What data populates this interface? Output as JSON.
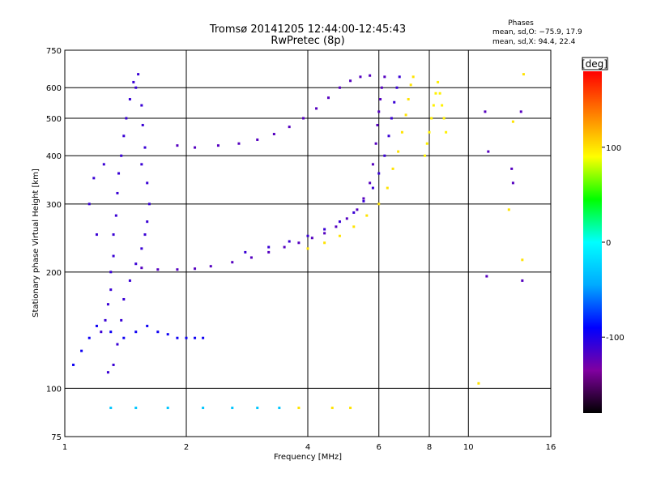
{
  "chart_data": {
    "type": "scatter",
    "title": "Tromsø 20141205 12:44:00-12:45:43",
    "subtitle": "RwPretec (8p)",
    "phase_stats": {
      "heading": "Phases",
      "line1": "mean, sd,O: −75.9, 17.9",
      "line2": "mean, sd,X:  94.4, 22.4"
    },
    "xlabel": "Frequency [MHz]",
    "ylabel": "Stationary phase Virtual Height [km]",
    "x_scale": "log",
    "y_scale": "log",
    "xlim": [
      1,
      16
    ],
    "ylim": [
      75,
      750
    ],
    "x_ticks": [
      1,
      2,
      4,
      6,
      8,
      10,
      16
    ],
    "x_tick_labels": [
      "1",
      "2",
      "4",
      "6",
      "8",
      "10",
      "16"
    ],
    "y_ticks": [
      75,
      100,
      200,
      300,
      400,
      500,
      600,
      750
    ],
    "y_tick_labels": [
      "75",
      "100",
      "200",
      "300",
      "400",
      "500",
      "600",
      "750"
    ],
    "grid": true,
    "colorbar": {
      "label": "[deg]",
      "range": [
        -180,
        180
      ],
      "ticks": [
        100,
        0,
        -100
      ],
      "tick_labels": [
        "100",
        "0",
        "-100"
      ],
      "stops": [
        "#000000",
        "#8000a0",
        "#0000ff",
        "#00aaff",
        "#00ffff",
        "#00ff00",
        "#ffff00",
        "#ff8000",
        "#ff0000"
      ]
    },
    "series": [
      {
        "phase": -110,
        "points": [
          [
            1.23,
            140
          ],
          [
            1.26,
            150
          ],
          [
            1.28,
            165
          ],
          [
            1.3,
            180
          ],
          [
            1.3,
            200
          ],
          [
            1.32,
            220
          ],
          [
            1.32,
            250
          ],
          [
            1.34,
            280
          ],
          [
            1.35,
            320
          ],
          [
            1.36,
            360
          ],
          [
            1.38,
            400
          ],
          [
            1.4,
            450
          ],
          [
            1.42,
            500
          ],
          [
            1.45,
            560
          ],
          [
            1.48,
            620
          ],
          [
            1.52,
            650
          ],
          [
            1.5,
            600
          ],
          [
            1.55,
            540
          ],
          [
            1.56,
            480
          ],
          [
            1.58,
            420
          ],
          [
            1.55,
            380
          ],
          [
            1.6,
            340
          ],
          [
            1.62,
            300
          ],
          [
            1.6,
            270
          ],
          [
            1.58,
            250
          ],
          [
            1.55,
            230
          ],
          [
            1.5,
            210
          ],
          [
            1.45,
            190
          ],
          [
            1.4,
            170
          ],
          [
            1.38,
            150
          ],
          [
            1.35,
            130
          ],
          [
            1.32,
            115
          ],
          [
            1.28,
            110
          ],
          [
            1.2,
            250
          ],
          [
            1.15,
            300
          ],
          [
            1.18,
            350
          ],
          [
            1.25,
            380
          ]
        ]
      },
      {
        "phase": -95,
        "points": [
          [
            1.05,
            115
          ],
          [
            1.1,
            125
          ],
          [
            1.15,
            135
          ],
          [
            1.2,
            145
          ],
          [
            1.3,
            140
          ],
          [
            1.4,
            135
          ],
          [
            1.5,
            140
          ],
          [
            1.6,
            145
          ],
          [
            1.7,
            140
          ],
          [
            1.8,
            138
          ],
          [
            1.9,
            135
          ],
          [
            2.0,
            135
          ],
          [
            2.1,
            135
          ],
          [
            2.2,
            135
          ]
        ]
      },
      {
        "phase": -120,
        "points": [
          [
            1.55,
            205
          ],
          [
            1.7,
            203
          ],
          [
            1.9,
            203
          ],
          [
            2.1,
            204
          ],
          [
            2.3,
            207
          ],
          [
            2.6,
            212
          ],
          [
            2.9,
            218
          ],
          [
            3.2,
            225
          ],
          [
            3.5,
            232
          ],
          [
            3.8,
            238
          ],
          [
            4.1,
            245
          ],
          [
            4.4,
            252
          ],
          [
            4.7,
            262
          ],
          [
            5.0,
            275
          ],
          [
            5.3,
            290
          ],
          [
            5.5,
            310
          ],
          [
            5.7,
            340
          ],
          [
            5.8,
            380
          ],
          [
            5.9,
            430
          ],
          [
            5.95,
            480
          ],
          [
            6.0,
            520
          ],
          [
            6.05,
            560
          ],
          [
            6.1,
            600
          ],
          [
            6.2,
            640
          ]
        ]
      },
      {
        "phase": -110,
        "points": [
          [
            2.8,
            225
          ],
          [
            3.2,
            232
          ],
          [
            3.6,
            240
          ],
          [
            4.0,
            248
          ],
          [
            4.4,
            258
          ],
          [
            4.8,
            270
          ],
          [
            5.2,
            285
          ],
          [
            5.5,
            305
          ],
          [
            5.8,
            330
          ],
          [
            6.0,
            360
          ],
          [
            6.2,
            400
          ],
          [
            6.35,
            450
          ],
          [
            6.45,
            500
          ],
          [
            6.55,
            550
          ],
          [
            6.65,
            600
          ],
          [
            6.75,
            640
          ]
        ]
      },
      {
        "phase": -120,
        "points": [
          [
            1.9,
            425
          ],
          [
            2.1,
            420
          ],
          [
            2.4,
            425
          ],
          [
            2.7,
            430
          ],
          [
            3.0,
            440
          ],
          [
            3.3,
            455
          ],
          [
            3.6,
            475
          ],
          [
            3.9,
            500
          ],
          [
            4.2,
            530
          ],
          [
            4.5,
            565
          ],
          [
            4.8,
            600
          ],
          [
            5.1,
            625
          ],
          [
            5.4,
            640
          ],
          [
            5.7,
            645
          ]
        ]
      },
      {
        "phase": 100,
        "points": [
          [
            4.0,
            230
          ],
          [
            4.4,
            238
          ],
          [
            4.8,
            248
          ],
          [
            5.2,
            262
          ],
          [
            5.6,
            280
          ],
          [
            6.0,
            300
          ],
          [
            6.3,
            330
          ],
          [
            6.5,
            370
          ],
          [
            6.7,
            410
          ],
          [
            6.85,
            460
          ],
          [
            7.0,
            510
          ],
          [
            7.1,
            560
          ],
          [
            7.2,
            610
          ],
          [
            7.3,
            640
          ]
        ]
      },
      {
        "phase": 95,
        "points": [
          [
            7.8,
            400
          ],
          [
            7.9,
            430
          ],
          [
            8.0,
            460
          ],
          [
            8.1,
            500
          ],
          [
            8.2,
            540
          ],
          [
            8.3,
            580
          ],
          [
            8.4,
            620
          ],
          [
            8.5,
            580
          ],
          [
            8.6,
            540
          ],
          [
            8.7,
            500
          ],
          [
            8.8,
            460
          ]
        ]
      },
      {
        "phase": -30,
        "points": [
          [
            1.3,
            89
          ],
          [
            1.5,
            89
          ],
          [
            1.8,
            89
          ],
          [
            2.2,
            89
          ],
          [
            2.6,
            89
          ],
          [
            3.0,
            89
          ],
          [
            3.4,
            89
          ]
        ]
      },
      {
        "phase": 100,
        "points": [
          [
            3.8,
            89
          ],
          [
            4.6,
            89
          ],
          [
            5.1,
            89
          ]
        ]
      },
      {
        "phase": -120,
        "points": [
          [
            11.0,
            520
          ],
          [
            11.2,
            410
          ],
          [
            12.8,
            370
          ],
          [
            12.9,
            340
          ],
          [
            13.5,
            520
          ],
          [
            11.1,
            195
          ],
          [
            13.6,
            190
          ]
        ]
      },
      {
        "phase": 100,
        "points": [
          [
            12.6,
            290
          ],
          [
            12.9,
            490
          ],
          [
            13.7,
            650
          ],
          [
            10.6,
            103
          ],
          [
            13.6,
            215
          ]
        ]
      }
    ]
  }
}
